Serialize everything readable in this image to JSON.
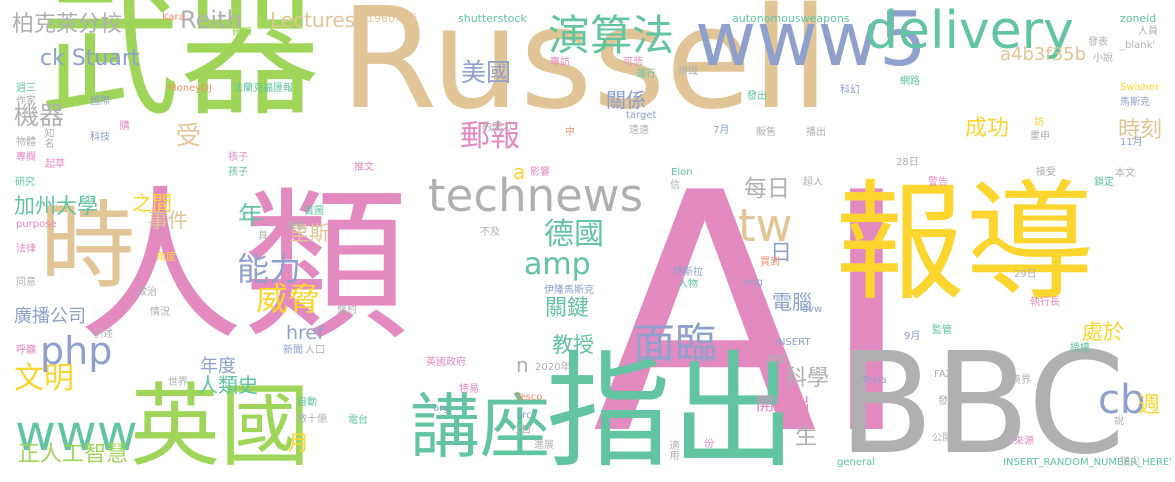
{
  "colors": {
    "green": "#9fd65a",
    "tan": "#e1c596",
    "pink": "#e38ac0",
    "yellow": "#fcd52f",
    "gray": "#b0b0b0",
    "teal": "#62c4a0",
    "blue": "#8ea0cb",
    "orange": "#f3906a"
  },
  "words": [
    {
      "text": "AI",
      "c": "pink"
    },
    {
      "text": "Russell",
      "c": "tan"
    },
    {
      "text": "報導",
      "c": "yellow"
    },
    {
      "text": "人類",
      "c": "pink"
    },
    {
      "text": "武器",
      "c": "green"
    },
    {
      "text": "BBC",
      "c": "gray"
    },
    {
      "text": "指出",
      "c": "teal"
    },
    {
      "text": "時",
      "c": "tan"
    },
    {
      "text": "英國",
      "c": "green"
    },
    {
      "text": "講座",
      "c": "teal"
    },
    {
      "text": "www5",
      "c": "blue"
    },
    {
      "text": "technews",
      "c": "gray"
    },
    {
      "text": "delivery",
      "c": "teal"
    },
    {
      "text": "演算法",
      "c": "teal"
    },
    {
      "text": "amp",
      "c": "teal"
    },
    {
      "text": "tw",
      "c": "tan"
    },
    {
      "text": "www",
      "c": "teal"
    },
    {
      "text": "文明",
      "c": "yellow"
    },
    {
      "text": "php",
      "c": "blue"
    },
    {
      "text": "德國",
      "c": "teal"
    },
    {
      "text": "面臨",
      "c": "blue"
    },
    {
      "text": "cb",
      "c": "blue"
    },
    {
      "text": "能力",
      "c": "blue"
    },
    {
      "text": "威脅",
      "c": "yellow"
    },
    {
      "text": "郵報",
      "c": "pink"
    },
    {
      "text": "美國",
      "c": "blue"
    },
    {
      "text": "a4b3f35b",
      "c": "tan"
    },
    {
      "text": "時刻",
      "c": "tan"
    },
    {
      "text": "成功",
      "c": "yellow"
    },
    {
      "text": "Reith",
      "c": "gray"
    },
    {
      "text": "Lectures",
      "c": "tan"
    },
    {
      "text": "ck Stuart",
      "c": "blue"
    },
    {
      "text": "柏克萊分校",
      "c": "gray"
    },
    {
      "text": "機器",
      "c": "gray"
    },
    {
      "text": "受",
      "c": "tan"
    },
    {
      "text": "年",
      "c": "teal"
    },
    {
      "text": "每日",
      "c": "gray"
    },
    {
      "text": "日",
      "c": "blue"
    },
    {
      "text": "關係",
      "c": "blue"
    },
    {
      "text": "里斯",
      "c": "tan"
    },
    {
      "text": "加州大學",
      "c": "teal"
    },
    {
      "text": "事件",
      "c": "tan"
    },
    {
      "text": "之間",
      "c": "yellow"
    },
    {
      "text": "廣播公司",
      "c": "blue"
    },
    {
      "text": "href",
      "c": "blue"
    },
    {
      "text": "關鍵",
      "c": "teal"
    },
    {
      "text": "電腦",
      "c": "blue"
    },
    {
      "text": "教授",
      "c": "teal"
    },
    {
      "text": "年度",
      "c": "blue"
    },
    {
      "text": "人類史",
      "c": "teal"
    },
    {
      "text": "處於",
      "c": "yellow"
    },
    {
      "text": "科學",
      "c": "gray"
    },
    {
      "text": "開發出",
      "c": "pink"
    },
    {
      "text": "生",
      "c": "gray"
    },
    {
      "text": "月",
      "c": "yellow"
    },
    {
      "text": "正人工智慧",
      "c": "green"
    },
    {
      "text": "週",
      "c": "yellow"
    },
    {
      "text": "a",
      "c": "yellow"
    },
    {
      "text": "n",
      "c": "gray"
    },
    {
      "text": "1960年代",
      "c": "tan"
    },
    {
      "text": "shutterstock",
      "c": "teal"
    },
    {
      "text": "autonomousweapons",
      "c": "teal"
    },
    {
      "text": "zoneid",
      "c": "teal"
    },
    {
      "text": "人員",
      "c": "gray"
    },
    {
      "text": "_blank'",
      "c": "gray"
    },
    {
      "text": "Kara",
      "c": "orange"
    },
    {
      "text": "刪滴",
      "c": "green"
    },
    {
      "text": "專訪",
      "c": "pink"
    },
    {
      "text": "可悲",
      "c": "pink"
    },
    {
      "text": "運行",
      "c": "teal"
    },
    {
      "text": "辨識",
      "c": "gray"
    },
    {
      "text": "發表",
      "c": "gray"
    },
    {
      "text": "小說",
      "c": "gray"
    },
    {
      "text": "週三",
      "c": "teal"
    },
    {
      "text": "作家",
      "c": "gray"
    },
    {
      "text": "國際",
      "c": "blue"
    },
    {
      "text": "MoneyDJ",
      "c": "orange"
    },
    {
      "text": "法蘭克福匯報",
      "c": "teal"
    },
    {
      "text": "約束力",
      "c": "gray"
    },
    {
      "text": "發出",
      "c": "teal"
    },
    {
      "text": "網路",
      "c": "teal"
    },
    {
      "text": "科幻",
      "c": "blue"
    },
    {
      "text": "Swisher",
      "c": "yellow"
    },
    {
      "text": "馬斯克",
      "c": "blue"
    },
    {
      "text": "物體",
      "c": "gray"
    },
    {
      "text": "購",
      "c": "pink"
    },
    {
      "text": "target",
      "c": "blue"
    },
    {
      "text": "7月",
      "c": "blue"
    },
    {
      "text": "專欄",
      "c": "pink"
    },
    {
      "text": "科技",
      "c": "blue"
    },
    {
      "text": "中",
      "c": "orange"
    },
    {
      "text": "遠遠",
      "c": "gray"
    },
    {
      "text": "販售",
      "c": "gray"
    },
    {
      "text": "播出",
      "c": "gray"
    },
    {
      "text": "訪",
      "c": "yellow"
    },
    {
      "text": "重申",
      "c": "gray"
    },
    {
      "text": "知名",
      "c": "gray"
    },
    {
      "text": "起草",
      "c": "pink"
    },
    {
      "text": "11月",
      "c": "blue"
    },
    {
      "text": "研究",
      "c": "teal"
    },
    {
      "text": "核子",
      "c": "pink"
    },
    {
      "text": "孩子",
      "c": "teal"
    },
    {
      "text": "推文",
      "c": "pink"
    },
    {
      "text": "影響",
      "c": "pink"
    },
    {
      "text": "Elon",
      "c": "teal"
    },
    {
      "text": "信",
      "c": "gray"
    },
    {
      "text": "超人",
      "c": "gray"
    },
    {
      "text": "28日",
      "c": "gray"
    },
    {
      "text": "本文",
      "c": "gray"
    },
    {
      "text": "接受",
      "c": "gray"
    },
    {
      "text": "鎖定",
      "c": "teal"
    },
    {
      "text": "警告",
      "c": "pink"
    },
    {
      "text": "purpose",
      "c": "pink"
    },
    {
      "text": "首圖",
      "c": "teal"
    },
    {
      "text": "專家",
      "c": "gray"
    },
    {
      "text": "具",
      "c": "gray"
    },
    {
      "text": "不及",
      "c": "gray"
    },
    {
      "text": "法律",
      "c": "pink"
    },
    {
      "text": "角度",
      "c": "yellow"
    },
    {
      "text": "同意",
      "c": "gray"
    },
    {
      "text": "買到",
      "c": "orange"
    },
    {
      "text": "特斯拉",
      "c": "blue"
    },
    {
      "text": "人物",
      "c": "teal"
    },
    {
      "text": "img",
      "c": "blue"
    },
    {
      "text": "伊隆馬斯克",
      "c": "blue"
    },
    {
      "text": "29日",
      "c": "gray"
    },
    {
      "text": "政治",
      "c": "gray"
    },
    {
      "text": "執行長",
      "c": "pink"
    },
    {
      "text": "情況",
      "c": "gray"
    },
    {
      "text": "條約",
      "c": "gray"
    },
    {
      "text": "avw",
      "c": "blue"
    },
    {
      "text": "引述",
      "c": "gray"
    },
    {
      "text": "INSERT",
      "c": "blue"
    },
    {
      "text": "9月",
      "c": "blue"
    },
    {
      "text": "監管",
      "c": "teal"
    },
    {
      "text": "授權",
      "c": "teal"
    },
    {
      "text": "呼籲",
      "c": "pink"
    },
    {
      "text": "新聞",
      "c": "blue"
    },
    {
      "text": "人口",
      "c": "gray"
    },
    {
      "text": "英國政府",
      "c": "pink"
    },
    {
      "text": "2020年",
      "c": "gray"
    },
    {
      "text": "轉載",
      "c": "gray"
    },
    {
      "text": "世界",
      "c": "gray"
    },
    {
      "text": "特易",
      "c": "pink"
    },
    {
      "text": "Tesla",
      "c": "blue"
    },
    {
      "text": "FAZ",
      "c": "gray"
    },
    {
      "text": "境界",
      "c": "gray"
    },
    {
      "text": "發展",
      "c": "gray"
    },
    {
      "text": "自動",
      "c": "teal"
    },
    {
      "text": "數十億",
      "c": "gray"
    },
    {
      "text": "電台",
      "c": "teal"
    },
    {
      "text": "org",
      "c": "blue"
    },
    {
      "text": "Tesco",
      "c": "orange"
    },
    {
      "text": "src",
      "c": "blue"
    },
    {
      "text": "1日",
      "c": "gray"
    },
    {
      "text": "進展",
      "c": "gray"
    },
    {
      "text": "適用",
      "c": "gray"
    },
    {
      "text": "份",
      "c": "pink"
    },
    {
      "text": "公開",
      "c": "gray"
    },
    {
      "text": "來源",
      "c": "pink"
    },
    {
      "text": "說",
      "c": "gray"
    },
    {
      "text": "general",
      "c": "teal"
    },
    {
      "text": "INSERT_RANDOM_NUMBER_HERE'",
      "c": "teal"
    },
    {
      "text": "頂尖",
      "c": "gray"
    },
    {
      "text": "Musk",
      "c": "gray"
    }
  ]
}
